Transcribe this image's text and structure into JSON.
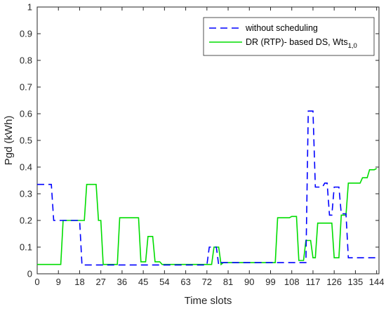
{
  "chart_data": {
    "type": "line",
    "xlabel": "Time slots",
    "ylabel": "Pgd (kWh)",
    "xlim": [
      0,
      145
    ],
    "ylim": [
      0,
      1
    ],
    "xticks": [
      0,
      9,
      18,
      27,
      36,
      45,
      54,
      63,
      72,
      81,
      90,
      99,
      108,
      117,
      126,
      135,
      144
    ],
    "yticks": [
      0,
      0.1,
      0.2,
      0.3,
      0.4,
      0.5,
      0.6,
      0.7,
      0.8,
      0.9,
      1
    ],
    "grid": false,
    "legend_position": "top-right",
    "series": [
      {
        "name": "without scheduling",
        "color": "#0000ff",
        "style": "dashed",
        "points": [
          [
            0,
            0.335
          ],
          [
            6,
            0.335
          ],
          [
            7,
            0.2
          ],
          [
            11,
            0.2
          ],
          [
            12,
            0.2
          ],
          [
            18,
            0.2
          ],
          [
            19,
            0.033
          ],
          [
            72,
            0.033
          ],
          [
            73,
            0.1
          ],
          [
            76,
            0.1
          ],
          [
            77,
            0.033
          ],
          [
            78,
            0.042
          ],
          [
            114,
            0.042
          ],
          [
            115,
            0.61
          ],
          [
            117,
            0.61
          ],
          [
            118,
            0.325
          ],
          [
            121,
            0.325
          ],
          [
            122,
            0.34
          ],
          [
            123,
            0.34
          ],
          [
            124,
            0.22
          ],
          [
            125,
            0.22
          ],
          [
            126,
            0.325
          ],
          [
            128,
            0.325
          ],
          [
            129,
            0.225
          ],
          [
            131,
            0.225
          ],
          [
            132,
            0.06
          ],
          [
            145,
            0.06
          ]
        ]
      },
      {
        "name": "DR (RTP)- based DS, Wts",
        "name_sub": "1,0",
        "color": "#00dd00",
        "style": "solid",
        "points": [
          [
            0,
            0.035
          ],
          [
            10,
            0.035
          ],
          [
            11,
            0.2
          ],
          [
            19,
            0.2
          ],
          [
            20,
            0.2
          ],
          [
            21,
            0.335
          ],
          [
            25,
            0.335
          ],
          [
            26,
            0.2
          ],
          [
            27,
            0.2
          ],
          [
            28,
            0.035
          ],
          [
            34,
            0.035
          ],
          [
            35,
            0.21
          ],
          [
            43,
            0.21
          ],
          [
            44,
            0.045
          ],
          [
            46,
            0.045
          ],
          [
            47,
            0.14
          ],
          [
            49,
            0.14
          ],
          [
            50,
            0.045
          ],
          [
            52,
            0.045
          ],
          [
            53,
            0.035
          ],
          [
            74,
            0.035
          ],
          [
            75,
            0.1
          ],
          [
            77,
            0.1
          ],
          [
            78,
            0.035
          ],
          [
            79,
            0.042
          ],
          [
            101,
            0.042
          ],
          [
            102,
            0.21
          ],
          [
            107,
            0.21
          ],
          [
            108,
            0.215
          ],
          [
            110,
            0.215
          ],
          [
            111,
            0.05
          ],
          [
            113,
            0.05
          ],
          [
            114,
            0.125
          ],
          [
            116,
            0.125
          ],
          [
            117,
            0.06
          ],
          [
            118,
            0.06
          ],
          [
            119,
            0.19
          ],
          [
            125,
            0.19
          ],
          [
            126,
            0.06
          ],
          [
            128,
            0.06
          ],
          [
            129,
            0.22
          ],
          [
            131,
            0.22
          ],
          [
            132,
            0.34
          ],
          [
            137,
            0.34
          ],
          [
            138,
            0.36
          ],
          [
            140,
            0.36
          ],
          [
            141,
            0.39
          ],
          [
            143,
            0.39
          ],
          [
            144,
            0.395
          ]
        ]
      }
    ]
  }
}
